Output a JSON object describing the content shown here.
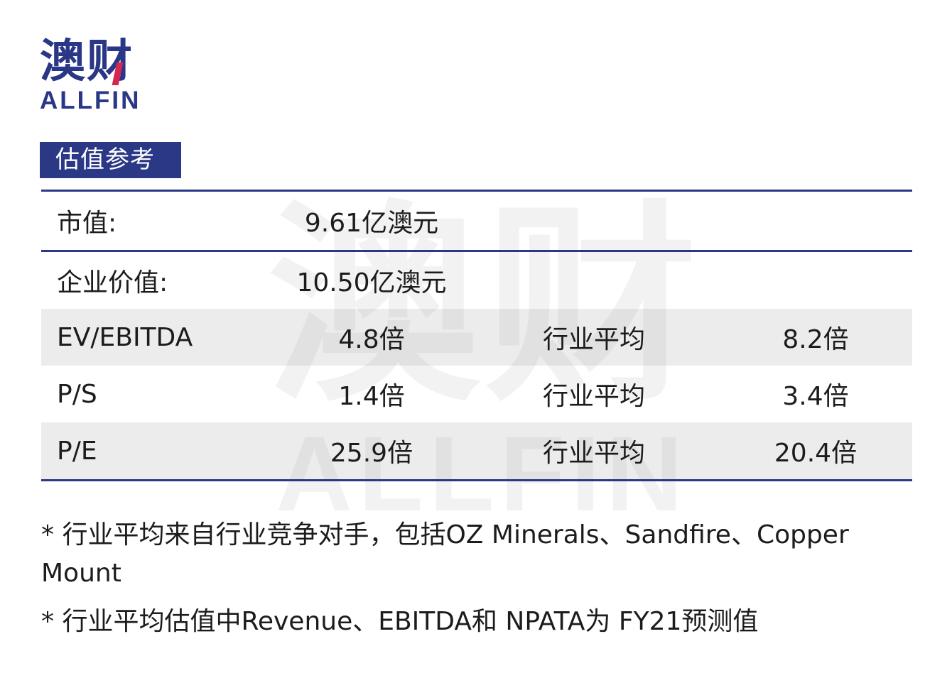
{
  "logo": {
    "cn": "澳财",
    "en": "ALLFIN"
  },
  "section_title": "估值参考",
  "rows": [
    {
      "label": "市值:",
      "value": "9.61亿澳元"
    },
    {
      "label": "企业价值:",
      "value": "10.50亿澳元"
    },
    {
      "label": "EV/EBITDA",
      "value": "4.8倍",
      "industry_label": "行业平均",
      "industry_value": "8.2倍"
    },
    {
      "label": "P/S",
      "value": "1.4倍",
      "industry_label": "行业平均",
      "industry_value": "3.4倍"
    },
    {
      "label": "P/E",
      "value": "25.9倍",
      "industry_label": "行业平均",
      "industry_value": "20.4倍"
    }
  ],
  "notes": [
    "* 行业平均来自行业竞争对手，包括OZ Minerals、Sandfire、Copper Mount",
    "* 行业平均估值中Revenue、EBITDA和 NPATA为 FY21预测值"
  ],
  "colors": {
    "brand_navy": "#2b3886",
    "accent_red": "#d7264f",
    "row_shade": "#e8e8e8"
  }
}
